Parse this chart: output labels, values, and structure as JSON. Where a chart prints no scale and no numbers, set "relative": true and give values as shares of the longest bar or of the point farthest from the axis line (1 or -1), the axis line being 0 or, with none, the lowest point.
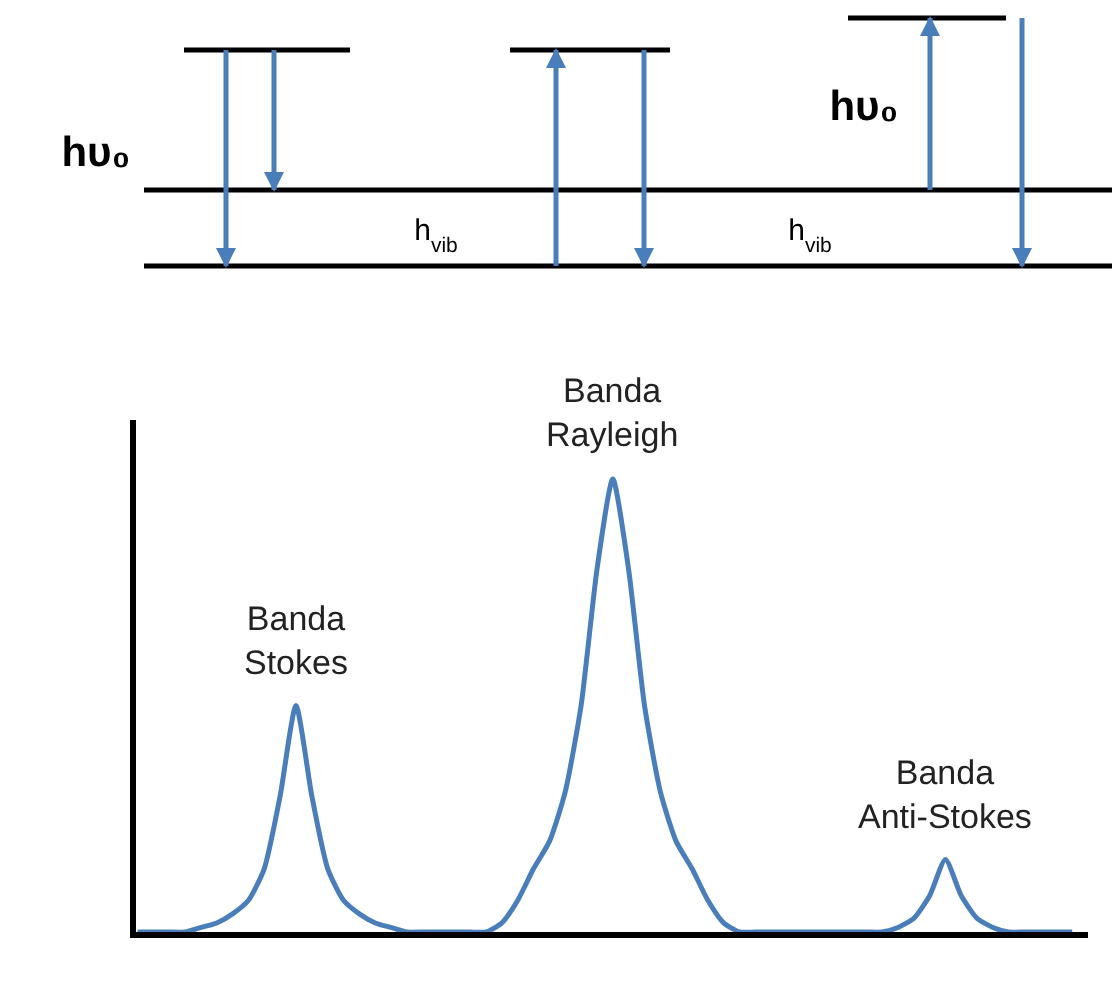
{
  "chart_data": {
    "type": "line",
    "relative": true,
    "grid": false,
    "marker": "none",
    "line_style": "solid",
    "categories": [
      null,
      null,
      null,
      null,
      null,
      null,
      null,
      null,
      null,
      null,
      null,
      null,
      null,
      null,
      null,
      null,
      null,
      null,
      null,
      null,
      null,
      null,
      null,
      null,
      null,
      null,
      null,
      null,
      null,
      null,
      null,
      null,
      null,
      null,
      null,
      null,
      null,
      null,
      null,
      null,
      null,
      null,
      null,
      null,
      null,
      null,
      null,
      null,
      null,
      null,
      null,
      null,
      null,
      null,
      null,
      null,
      null,
      null,
      null,
      null
    ],
    "series": [
      {
        "color": "#4a7ebb",
        "values": [
          0,
          0,
          0,
          0,
          0.01,
          0.02,
          0.04,
          0.07,
          0.14,
          0.3,
          0.5,
          0.3,
          0.14,
          0.07,
          0.04,
          0.02,
          0.01,
          0,
          0,
          0,
          0,
          0,
          0,
          0.02,
          0.07,
          0.14,
          0.2,
          0.31,
          0.5,
          0.8,
          1,
          0.8,
          0.5,
          0.31,
          0.2,
          0.14,
          0.07,
          0.02,
          0,
          0,
          0,
          0,
          0,
          0,
          0,
          0,
          0,
          0,
          0.01,
          0.03,
          0.08,
          0.16,
          0.08,
          0.03,
          0.01,
          0,
          0,
          0,
          0,
          0
        ]
      }
    ],
    "annotations": [
      "hυ₀",
      "hυ₀",
      "h$_{vib}$",
      "h$_{vib}$",
      {
        "text": "Banda\nStokes",
        "y": 0.5
      },
      {
        "text": "Banda\nRayleigh",
        "y": 1
      },
      {
        "text": "Banda\nAnti-Stokes",
        "y": 0.16
      }
    ]
  }
}
